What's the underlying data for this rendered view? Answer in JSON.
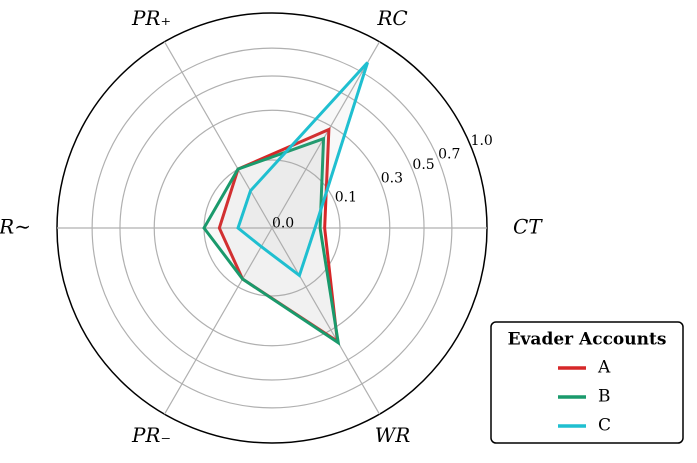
{
  "chart_data": {
    "type": "radar",
    "categories": [
      "CT",
      "RC",
      "PR₊",
      "PR∼",
      "PR₋",
      "WR"
    ],
    "rscale": "sqrt",
    "rlim": [
      0,
      1
    ],
    "rticks": [
      {
        "value": 0,
        "label": "0.0"
      },
      0.1,
      0.3,
      0.5,
      0.7,
      {
        "value": 1,
        "label": "1.0"
      }
    ],
    "grid": true,
    "legend": {
      "title": "Evader Accounts",
      "position": "lower right"
    },
    "series": [
      {
        "name": "A",
        "color": "#d62728",
        "values": [
          0.06,
          0.28,
          0.1,
          0.06,
          0.075,
          0.37
        ]
      },
      {
        "name": "B",
        "color": "#1a9a6c",
        "values": [
          0.05,
          0.23,
          0.1,
          0.1,
          0.075,
          0.38
        ]
      },
      {
        "name": "C",
        "color": "#1fbfd0",
        "values": [
          0.04,
          0.79,
          0.04,
          0.025,
          0.01,
          0.065
        ]
      }
    ]
  }
}
